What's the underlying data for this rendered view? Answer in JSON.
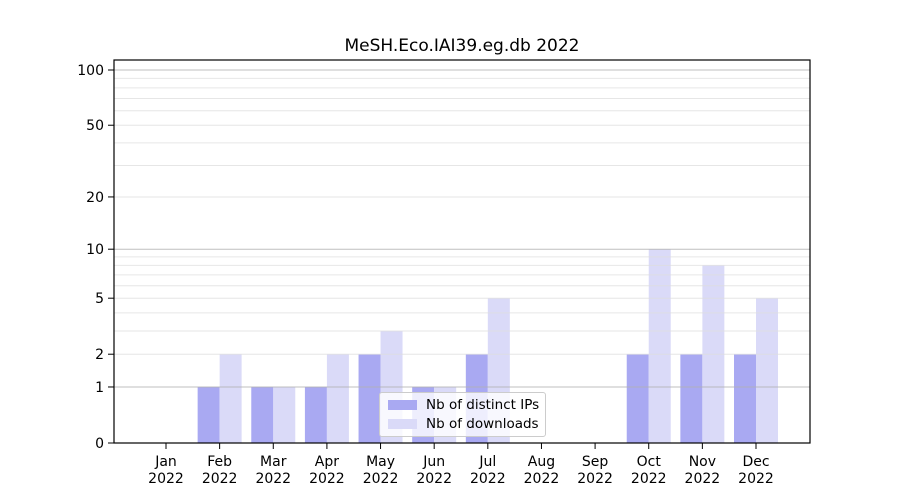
{
  "title": "MeSH.Eco.IAI39.eg.db 2022",
  "legend": {
    "items": [
      {
        "label": "Nb of distinct IPs",
        "color": "#a9a9f2"
      },
      {
        "label": "Nb of downloads",
        "color": "#dadaf8"
      }
    ]
  },
  "chart_data": {
    "type": "bar",
    "title": "MeSH.Eco.IAI39.eg.db 2022",
    "categories": [
      "Jan",
      "Feb",
      "Mar",
      "Apr",
      "May",
      "Jun",
      "Jul",
      "Aug",
      "Sep",
      "Oct",
      "Nov",
      "Dec"
    ],
    "year_label": "2022",
    "series": [
      {
        "name": "Nb of distinct IPs",
        "color": "#a9a9f2",
        "values": [
          0,
          1,
          1,
          1,
          2,
          1,
          2,
          0,
          0,
          2,
          2,
          2
        ]
      },
      {
        "name": "Nb of downloads",
        "color": "#dadaf8",
        "values": [
          0,
          2,
          1,
          2,
          3,
          1,
          5,
          0,
          0,
          10,
          8,
          5
        ]
      }
    ],
    "xlabel": "",
    "ylabel": "",
    "yscale": "log10(1+y)",
    "ylim": [
      0,
      100
    ],
    "ytick_values": [
      0,
      1,
      2,
      5,
      10,
      20,
      50,
      100
    ],
    "ytick_labels": [
      "0",
      "1",
      "2",
      "5",
      "10",
      "20",
      "50",
      "100"
    ],
    "major_gridlines": [
      1,
      10,
      100
    ],
    "minor_gridlines": [
      2,
      3,
      4,
      5,
      6,
      7,
      8,
      9,
      20,
      30,
      40,
      50,
      60,
      70,
      80,
      90
    ],
    "grid": "on",
    "legend_position": "lower center",
    "colors": {
      "major_grid": "#b0b0b0",
      "minor_grid": "#dedede",
      "spine": "#000000",
      "background": "#ffffff"
    }
  }
}
